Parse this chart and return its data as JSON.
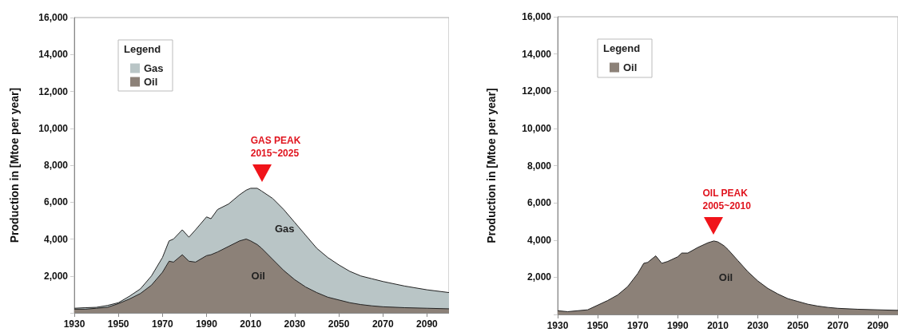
{
  "chart_data": [
    {
      "type": "area",
      "stacked": true,
      "ylabel": "Production in [Mtoe per year]",
      "legend_title": "Legend",
      "legend": "top left",
      "x": [
        1930,
        1935,
        1940,
        1945,
        1950,
        1955,
        1960,
        1965,
        1970,
        1973,
        1975,
        1979,
        1982,
        1985,
        1990,
        1992,
        1995,
        2000,
        2005,
        2008,
        2010,
        2013,
        2015,
        2020,
        2025,
        2030,
        2035,
        2040,
        2045,
        2050,
        2055,
        2060,
        2065,
        2070,
        2080,
        2090,
        2100
      ],
      "series": [
        {
          "name": "Oil",
          "color": "#8c8178",
          "values": [
            200,
            200,
            250,
            300,
            500,
            750,
            1050,
            1500,
            2200,
            2800,
            2750,
            3150,
            2800,
            2750,
            3100,
            3150,
            3300,
            3600,
            3900,
            4000,
            3900,
            3700,
            3500,
            2900,
            2300,
            1800,
            1400,
            1100,
            850,
            700,
            550,
            450,
            380,
            330,
            280,
            250,
            220
          ]
        },
        {
          "name": "Gas",
          "color": "#b9c5c6",
          "values": [
            50,
            80,
            50,
            100,
            50,
            150,
            250,
            500,
            800,
            1100,
            1250,
            1350,
            1300,
            1750,
            2100,
            1950,
            2300,
            2300,
            2500,
            2650,
            2850,
            3050,
            3100,
            3300,
            3300,
            3100,
            2800,
            2400,
            2150,
            1900,
            1700,
            1550,
            1470,
            1370,
            1170,
            1000,
            880
          ]
        }
      ],
      "xlim": [
        1930,
        2100
      ],
      "xticks": [
        1930,
        1950,
        1970,
        1990,
        2010,
        2030,
        2050,
        2070,
        2090
      ],
      "ylim": [
        0,
        16000
      ],
      "yticks": [
        {
          "value": 0,
          "label": null
        },
        {
          "value": 2000,
          "label": "2,000"
        },
        {
          "value": 4000,
          "label": "4,000"
        },
        {
          "value": 6000,
          "label": "6,000"
        },
        {
          "value": 8000,
          "label": "8,000"
        },
        {
          "value": 10000,
          "label": "10,000"
        },
        {
          "value": 12000,
          "label": "12,000"
        },
        {
          "value": 14000,
          "label": "14,000"
        },
        {
          "value": 16000,
          "label": "16,000"
        }
      ],
      "annotations": [
        "GAS PEAK\n2015~2025"
      ]
    },
    {
      "type": "area",
      "ylabel": "Production in [Mtoe per year]",
      "legend_title": "Legend",
      "legend": "top left",
      "x": [
        1930,
        1935,
        1940,
        1945,
        1950,
        1955,
        1960,
        1965,
        1970,
        1973,
        1975,
        1979,
        1982,
        1985,
        1990,
        1992,
        1995,
        2000,
        2005,
        2008,
        2010,
        2013,
        2015,
        2020,
        2025,
        2030,
        2035,
        2040,
        2045,
        2050,
        2055,
        2060,
        2065,
        2070,
        2080,
        2090,
        2100
      ],
      "series": [
        {
          "name": "Oil",
          "color": "#8c8178",
          "values": [
            200,
            150,
            200,
            250,
            500,
            750,
            1050,
            1500,
            2200,
            2750,
            2800,
            3150,
            2750,
            2850,
            3100,
            3300,
            3300,
            3600,
            3850,
            3950,
            3900,
            3700,
            3500,
            2900,
            2300,
            1800,
            1400,
            1100,
            850,
            700,
            550,
            450,
            380,
            330,
            280,
            250,
            220
          ]
        }
      ],
      "xlim": [
        1930,
        2100
      ],
      "xticks": [
        1930,
        1950,
        1970,
        1990,
        2010,
        2030,
        2050,
        2070,
        2090
      ],
      "ylim": [
        0,
        16000
      ],
      "yticks": [
        {
          "value": 0,
          "label": null
        },
        {
          "value": 2000,
          "label": "2,000"
        },
        {
          "value": 4000,
          "label": "4,000"
        },
        {
          "value": 6000,
          "label": "6,000"
        },
        {
          "value": 8000,
          "label": "8,000"
        },
        {
          "value": 10000,
          "label": "10,000"
        },
        {
          "value": 12000,
          "label": "12,000"
        },
        {
          "value": 14000,
          "label": "14,000"
        },
        {
          "value": 16000,
          "label": "16,000"
        }
      ],
      "annotations": [
        "OIL PEAK\n2005~2010"
      ]
    }
  ]
}
